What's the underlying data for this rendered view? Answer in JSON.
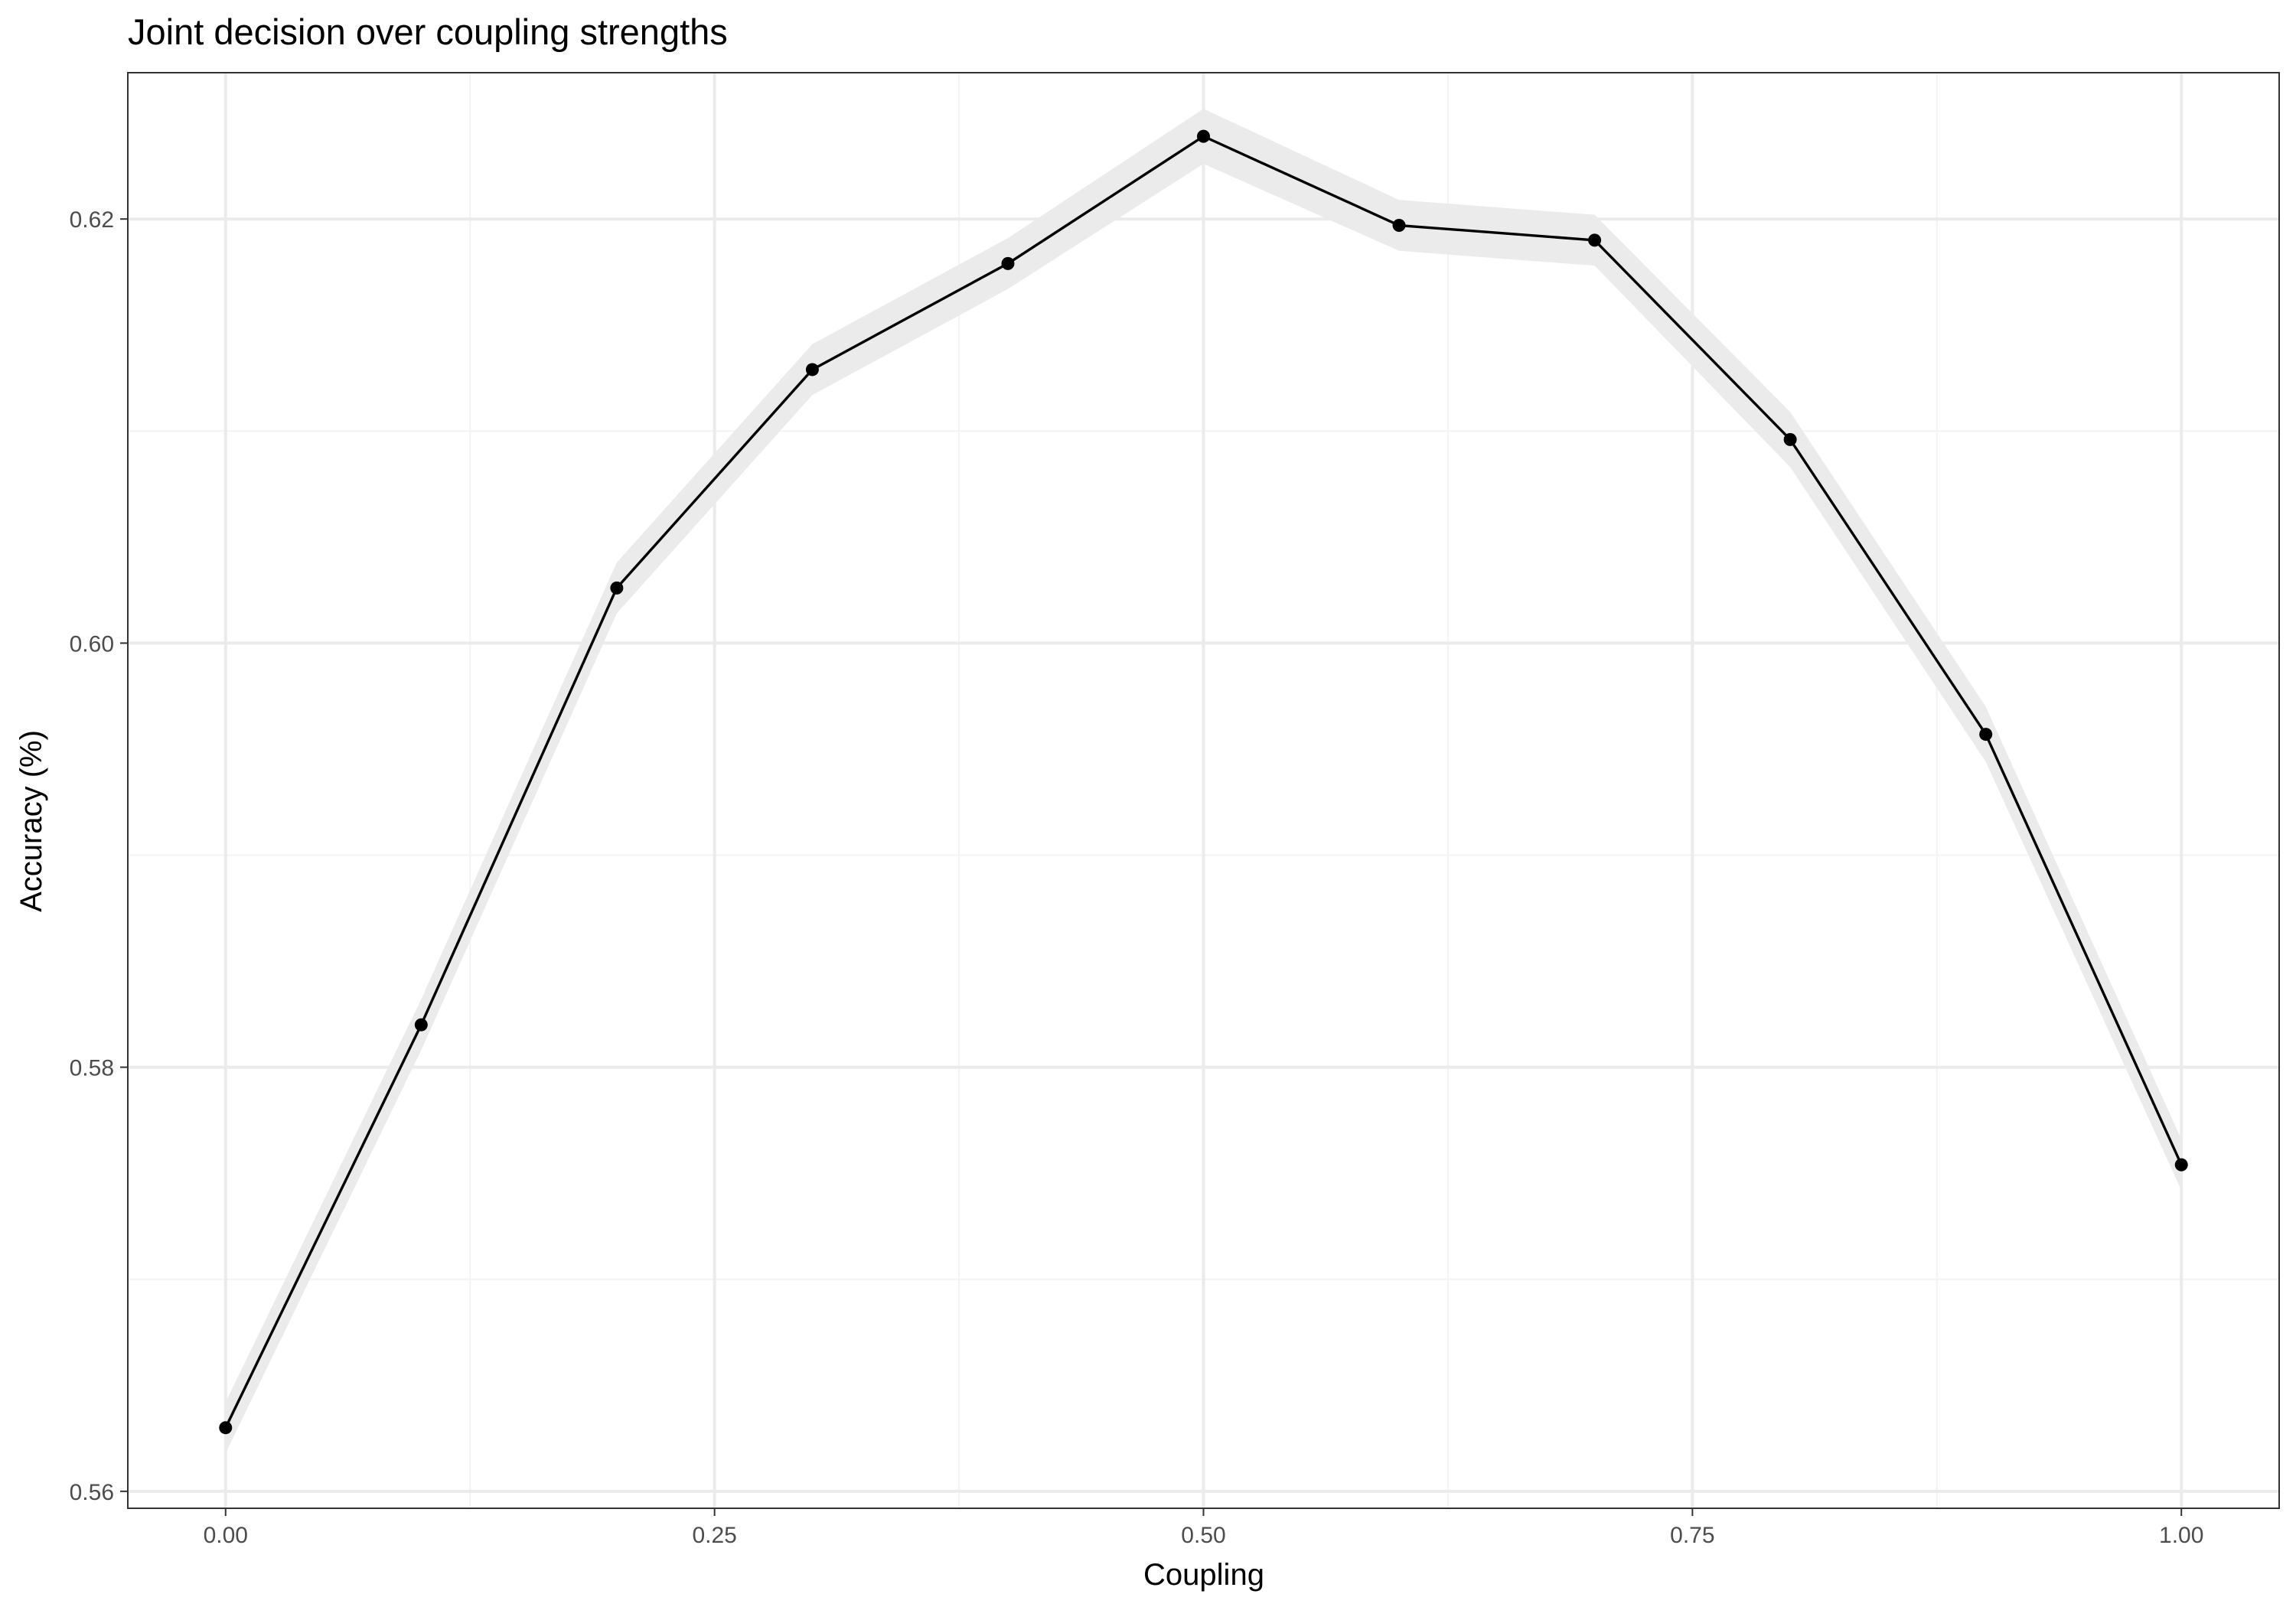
{
  "chart_data": {
    "type": "line",
    "title": "Joint decision over coupling strengths",
    "xlabel": "Coupling",
    "ylabel": "Accuracy (%)",
    "xlim": [
      -0.05,
      1.05
    ],
    "ylim": [
      0.5592,
      0.6269
    ],
    "x_ticks": [
      0.0,
      0.25,
      0.5,
      0.75,
      1.0
    ],
    "x_tick_labels": [
      "0.00",
      "0.25",
      "0.50",
      "0.75",
      "1.00"
    ],
    "y_ticks": [
      0.56,
      0.58,
      0.6,
      0.62
    ],
    "y_tick_labels": [
      "0.56",
      "0.58",
      "0.60",
      "0.62"
    ],
    "grid": true,
    "legend": "none",
    "series": [
      {
        "x": [
          0.0,
          0.1,
          0.2,
          0.3,
          0.4,
          0.5,
          0.6,
          0.7,
          0.8,
          0.9,
          1.0
        ],
        "values": [
          0.563,
          0.582,
          0.6026,
          0.6129,
          0.6179,
          0.6239,
          0.6197,
          0.619,
          0.6096,
          0.5957,
          0.5754
        ],
        "lower": [
          0.5618,
          0.5808,
          0.6014,
          0.6117,
          0.6167,
          0.6226,
          0.6185,
          0.6178,
          0.6083,
          0.5944,
          0.5742
        ],
        "upper": [
          0.5642,
          0.5832,
          0.6038,
          0.6141,
          0.6191,
          0.6252,
          0.6209,
          0.6202,
          0.6109,
          0.597,
          0.5766
        ]
      }
    ],
    "colors": {
      "line": "#000000",
      "ribbon": "#ebebeb",
      "grid_major": "#ebebeb",
      "grid_minor": "#f3f3f3",
      "panel_border": "#333333"
    }
  }
}
